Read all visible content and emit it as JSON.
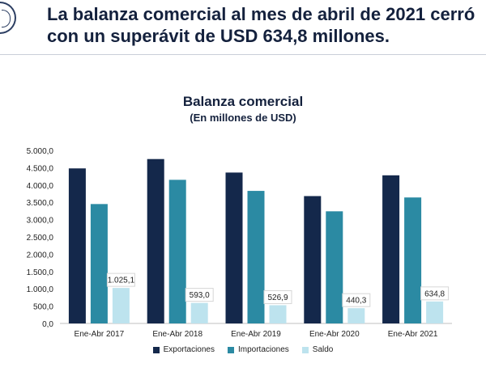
{
  "headline": "La balanza comercial al mes de abril de 2021 cerró con un superávit de USD 634,8 millones.",
  "colors": {
    "exportaciones": "#14284b",
    "importaciones": "#2b8aa3",
    "saldo": "#bde3ee"
  },
  "chart_data": {
    "type": "bar",
    "title": "Balanza comercial",
    "subtitle": "(En millones de USD)",
    "categories": [
      "Ene-Abr 2017",
      "Ene-Abr 2018",
      "Ene-Abr 2019",
      "Ene-Abr 2020",
      "Ene-Abr 2021"
    ],
    "series": [
      {
        "name": "Exportaciones",
        "values": [
          4480,
          4750,
          4360,
          3680,
          4280
        ]
      },
      {
        "name": "Importaciones",
        "values": [
          3450,
          4150,
          3830,
          3240,
          3640
        ]
      },
      {
        "name": "Saldo",
        "values": [
          1025.1,
          593.0,
          526.9,
          440.3,
          634.8
        ],
        "labels": [
          "1.025,1",
          "593,0",
          "526,9",
          "440,3",
          "634,8"
        ]
      }
    ],
    "ylim": [
      0,
      5000
    ],
    "yticks": [
      0,
      500,
      1000,
      1500,
      2000,
      2500,
      3000,
      3500,
      4000,
      4500,
      5000
    ],
    "ytick_labels": [
      "0,0",
      "500,0",
      "1.000,0",
      "1.500,0",
      "2.000,0",
      "2.500,0",
      "3.000,0",
      "3.500,0",
      "4.000,0",
      "4.500,0",
      "5.000,0"
    ],
    "grid": false,
    "legend": "bottom-center"
  }
}
